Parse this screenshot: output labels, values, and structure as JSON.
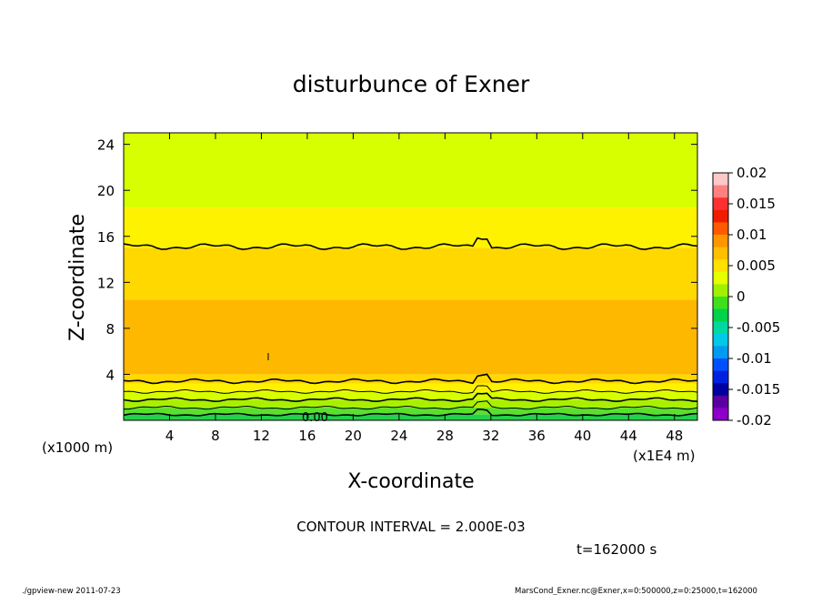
{
  "chart_data": {
    "type": "heatmap",
    "title": "disturbunce of Exner",
    "xlabel": "X-coordinate",
    "ylabel": "Z-coordinate",
    "xlim": [
      0,
      50
    ],
    "ylim": [
      0,
      25
    ],
    "x_ticks": [
      4,
      8,
      12,
      16,
      20,
      24,
      28,
      32,
      36,
      40,
      44,
      48
    ],
    "y_ticks": [
      4,
      8,
      12,
      16,
      20,
      24
    ],
    "x_unit": "(x1E4 m)",
    "y_unit": "(x1000 m)",
    "contour_interval_text": "CONTOUR INTERVAL = 2.000E-03",
    "contour_label": "0.00",
    "time_text": "t=162000 s",
    "colorbar": {
      "labels": [
        "0.02",
        "0.015",
        "0.01",
        "0.005",
        "0",
        "-0.005",
        "-0.01",
        "-0.015",
        "-0.02"
      ],
      "levels": [
        0.02,
        0.015,
        0.01,
        0.005,
        0,
        -0.005,
        -0.01,
        -0.015,
        -0.02
      ],
      "colors": [
        "#ffc8c8",
        "#ff8080",
        "#ff3030",
        "#f01c00",
        "#ff5a00",
        "#ff9600",
        "#ffbe00",
        "#ffe000",
        "#e6ff00",
        "#a0f000",
        "#3ee01e",
        "#00d24a",
        "#00d8a0",
        "#00c8e6",
        "#009af0",
        "#0050ff",
        "#0020e0",
        "#0000a0",
        "#5a00a0",
        "#8c00c8"
      ]
    },
    "bands": [
      {
        "z_range": [
          18.5,
          25
        ],
        "value_range": [
          0.004,
          0.006
        ],
        "color": "#d8ff00"
      },
      {
        "z_range": [
          15,
          18.5
        ],
        "value_range": [
          0.006,
          0.008
        ],
        "color": "#fff200"
      },
      {
        "z_range": [
          10.5,
          15
        ],
        "value_range": [
          0.008,
          0.01
        ],
        "color": "#ffd800"
      },
      {
        "z_range": [
          4,
          10.5
        ],
        "value_range": [
          0.01,
          0.012
        ],
        "color": "#ffb800"
      },
      {
        "z_range": [
          3.2,
          4
        ],
        "value_range": [
          0.008,
          0.01
        ],
        "color": "#ffd800"
      },
      {
        "z_range": [
          2.5,
          3.2
        ],
        "value_range": [
          0.006,
          0.008
        ],
        "color": "#fff200"
      },
      {
        "z_range": [
          1.8,
          2.5
        ],
        "value_range": [
          0.004,
          0.006
        ],
        "color": "#d8ff00"
      },
      {
        "z_range": [
          1.1,
          1.8
        ],
        "value_range": [
          0.002,
          0.004
        ],
        "color": "#a8f000"
      },
      {
        "z_range": [
          0.5,
          1.1
        ],
        "value_range": [
          0,
          0.002
        ],
        "color": "#5ae02a"
      },
      {
        "z_range": [
          0,
          0.5
        ],
        "value_range": [
          -0.002,
          0
        ],
        "color": "#22d24a"
      }
    ]
  },
  "footer": {
    "left": "./gpview-new   2011-07-23",
    "right": "MarsCond_Exner.nc@Exner,x=0:500000,z=0:25000,t=162000"
  }
}
